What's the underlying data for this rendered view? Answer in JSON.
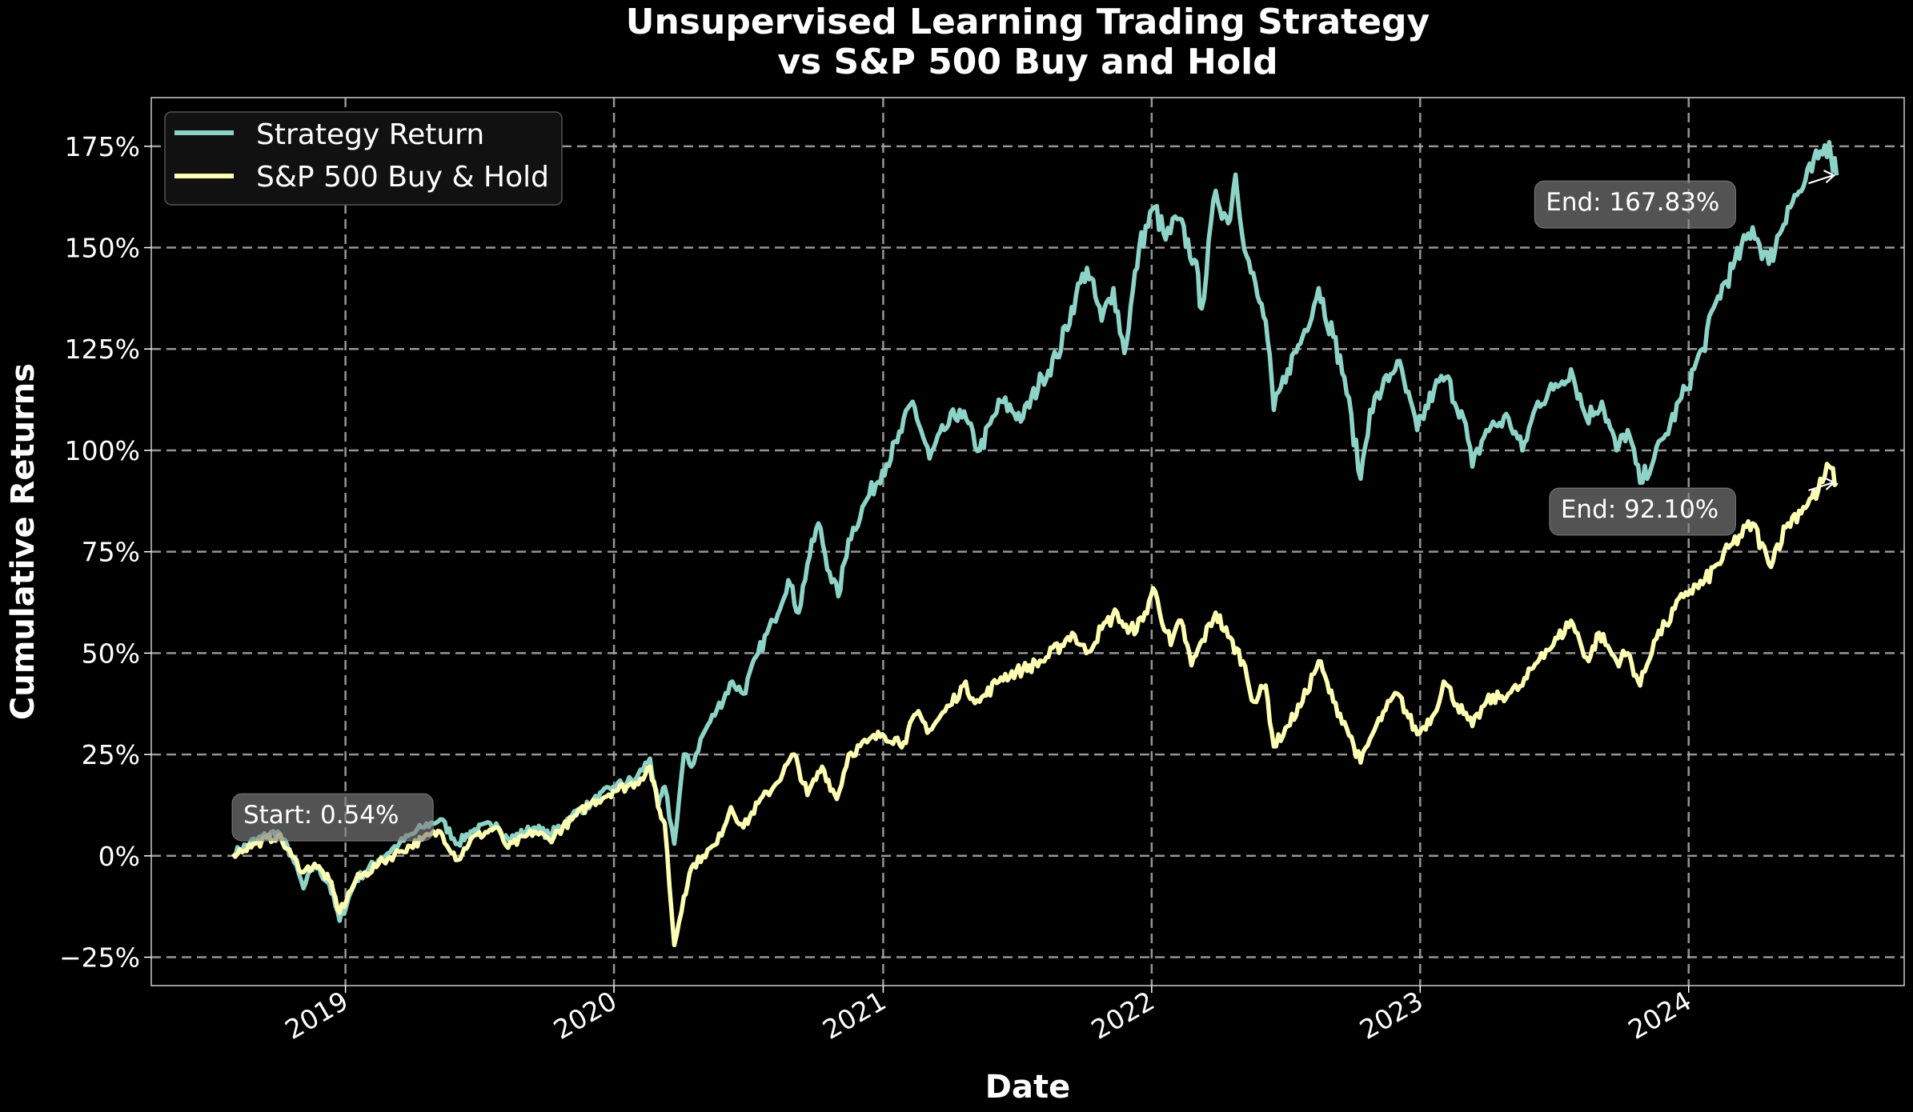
{
  "chart_data": {
    "type": "line",
    "title_line1": "Unsupervised Learning Trading Strategy",
    "title_line2": "vs S&P 500 Buy and Hold",
    "xlabel": "Date",
    "ylabel": "Cumulative Returns",
    "x_range": [
      "2018-04-12",
      "2024-10-20"
    ],
    "ylim": [
      -32,
      187
    ],
    "x_ticks": [
      {
        "date": "2019-01-01",
        "label": "2019"
      },
      {
        "date": "2020-01-01",
        "label": "2020"
      },
      {
        "date": "2021-01-01",
        "label": "2021"
      },
      {
        "date": "2022-01-01",
        "label": "2022"
      },
      {
        "date": "2023-01-01",
        "label": "2023"
      },
      {
        "date": "2024-01-01",
        "label": "2024"
      }
    ],
    "y_ticks": [
      {
        "value": -25,
        "label": "−25%"
      },
      {
        "value": 0,
        "label": "0%"
      },
      {
        "value": 25,
        "label": "25%"
      },
      {
        "value": 50,
        "label": "50%"
      },
      {
        "value": 75,
        "label": "75%"
      },
      {
        "value": 100,
        "label": "100%"
      },
      {
        "value": 125,
        "label": "125%"
      },
      {
        "value": 150,
        "label": "150%"
      },
      {
        "value": 175,
        "label": "175%"
      }
    ],
    "grid": true,
    "legend_position": "top-left",
    "series": [
      {
        "name": "Strategy Return",
        "color": "#8dd3c7",
        "points": [
          [
            "2018-08-01",
            0.5
          ],
          [
            "2018-09-01",
            4
          ],
          [
            "2018-10-01",
            6
          ],
          [
            "2018-10-20",
            0
          ],
          [
            "2018-11-05",
            -8
          ],
          [
            "2018-11-20",
            -2
          ],
          [
            "2018-12-10",
            -7
          ],
          [
            "2018-12-24",
            -16
          ],
          [
            "2019-01-15",
            -6
          ],
          [
            "2019-02-15",
            -1
          ],
          [
            "2019-03-15",
            3
          ],
          [
            "2019-04-15",
            7
          ],
          [
            "2019-05-10",
            9
          ],
          [
            "2019-06-03",
            3
          ],
          [
            "2019-06-20",
            6
          ],
          [
            "2019-07-25",
            8
          ],
          [
            "2019-08-10",
            4
          ],
          [
            "2019-09-15",
            7
          ],
          [
            "2019-10-05",
            5
          ],
          [
            "2019-11-05",
            10
          ],
          [
            "2019-12-01",
            13
          ],
          [
            "2019-12-31",
            17
          ],
          [
            "2020-01-31",
            19
          ],
          [
            "2020-02-19",
            24
          ],
          [
            "2020-03-01",
            12
          ],
          [
            "2020-03-10",
            17
          ],
          [
            "2020-03-23",
            3
          ],
          [
            "2020-04-05",
            25
          ],
          [
            "2020-04-15",
            22
          ],
          [
            "2020-05-01",
            30
          ],
          [
            "2020-05-20",
            36
          ],
          [
            "2020-06-10",
            43
          ],
          [
            "2020-06-25",
            40
          ],
          [
            "2020-07-15",
            50
          ],
          [
            "2020-08-05",
            58
          ],
          [
            "2020-08-25",
            68
          ],
          [
            "2020-09-08",
            60
          ],
          [
            "2020-09-20",
            72
          ],
          [
            "2020-10-05",
            82
          ],
          [
            "2020-10-20",
            70
          ],
          [
            "2020-11-01",
            64
          ],
          [
            "2020-11-15",
            78
          ],
          [
            "2020-12-10",
            88
          ],
          [
            "2020-12-31",
            95
          ],
          [
            "2021-01-20",
            102
          ],
          [
            "2021-02-10",
            112
          ],
          [
            "2021-03-05",
            98
          ],
          [
            "2021-03-25",
            105
          ],
          [
            "2021-04-15",
            110
          ],
          [
            "2021-05-12",
            100
          ],
          [
            "2021-06-10",
            112
          ],
          [
            "2021-07-10",
            108
          ],
          [
            "2021-08-05",
            118
          ],
          [
            "2021-08-25",
            123
          ],
          [
            "2021-09-20",
            138
          ],
          [
            "2021-10-05",
            145
          ],
          [
            "2021-10-25",
            132
          ],
          [
            "2021-11-10",
            140
          ],
          [
            "2021-11-25",
            124
          ],
          [
            "2021-12-15",
            150
          ],
          [
            "2022-01-05",
            160
          ],
          [
            "2022-01-20",
            152
          ],
          [
            "2022-02-05",
            157
          ],
          [
            "2022-02-28",
            147
          ],
          [
            "2022-03-10",
            135
          ],
          [
            "2022-03-29",
            164
          ],
          [
            "2022-04-15",
            156
          ],
          [
            "2022-04-25",
            168
          ],
          [
            "2022-05-10",
            148
          ],
          [
            "2022-05-25",
            138
          ],
          [
            "2022-06-05",
            132
          ],
          [
            "2022-06-16",
            110
          ],
          [
            "2022-07-05",
            120
          ],
          [
            "2022-07-25",
            128
          ],
          [
            "2022-08-16",
            140
          ],
          [
            "2022-09-05",
            128
          ],
          [
            "2022-09-20",
            118
          ],
          [
            "2022-10-12",
            93
          ],
          [
            "2022-10-25",
            110
          ],
          [
            "2022-11-10",
            115
          ],
          [
            "2022-12-01",
            122
          ],
          [
            "2022-12-28",
            105
          ],
          [
            "2023-01-20",
            115
          ],
          [
            "2023-02-05",
            118
          ],
          [
            "2023-03-01",
            108
          ],
          [
            "2023-03-13",
            96
          ],
          [
            "2023-04-01",
            105
          ],
          [
            "2023-05-01",
            108
          ],
          [
            "2023-05-20",
            100
          ],
          [
            "2023-06-10",
            112
          ],
          [
            "2023-07-01",
            115
          ],
          [
            "2023-07-25",
            120
          ],
          [
            "2023-08-15",
            108
          ],
          [
            "2023-09-05",
            112
          ],
          [
            "2023-09-25",
            100
          ],
          [
            "2023-10-10",
            105
          ],
          [
            "2023-10-27",
            92
          ],
          [
            "2023-11-15",
            98
          ],
          [
            "2023-12-01",
            104
          ],
          [
            "2023-12-28",
            115
          ],
          [
            "2024-01-20",
            125
          ],
          [
            "2024-02-10",
            138
          ],
          [
            "2024-03-01",
            145
          ],
          [
            "2024-03-28",
            155
          ],
          [
            "2024-04-19",
            146
          ],
          [
            "2024-05-15",
            160
          ],
          [
            "2024-06-05",
            165
          ],
          [
            "2024-06-25",
            172
          ],
          [
            "2024-07-10",
            176
          ],
          [
            "2024-07-20",
            167.83
          ]
        ]
      },
      {
        "name": "S&P 500 Buy & Hold",
        "color": "#ffffb3",
        "points": [
          [
            "2018-08-01",
            0.5
          ],
          [
            "2018-09-01",
            3
          ],
          [
            "2018-10-01",
            5
          ],
          [
            "2018-10-20",
            0
          ],
          [
            "2018-11-05",
            -4
          ],
          [
            "2018-11-20",
            -2
          ],
          [
            "2018-12-10",
            -6
          ],
          [
            "2018-12-24",
            -14
          ],
          [
            "2019-01-15",
            -6
          ],
          [
            "2019-02-15",
            -2
          ],
          [
            "2019-03-15",
            1
          ],
          [
            "2019-04-15",
            4
          ],
          [
            "2019-05-10",
            6
          ],
          [
            "2019-06-03",
            -1
          ],
          [
            "2019-06-20",
            4
          ],
          [
            "2019-07-25",
            7
          ],
          [
            "2019-08-10",
            2
          ],
          [
            "2019-09-15",
            6
          ],
          [
            "2019-10-05",
            4
          ],
          [
            "2019-11-05",
            9
          ],
          [
            "2019-12-01",
            13
          ],
          [
            "2019-12-31",
            16
          ],
          [
            "2020-01-31",
            18
          ],
          [
            "2020-02-19",
            22
          ],
          [
            "2020-03-01",
            12
          ],
          [
            "2020-03-10",
            8
          ],
          [
            "2020-03-23",
            -22
          ],
          [
            "2020-04-05",
            -10
          ],
          [
            "2020-04-15",
            -3
          ],
          [
            "2020-05-01",
            0
          ],
          [
            "2020-05-20",
            3
          ],
          [
            "2020-06-08",
            12
          ],
          [
            "2020-06-25",
            7
          ],
          [
            "2020-07-15",
            13
          ],
          [
            "2020-08-05",
            17
          ],
          [
            "2020-09-02",
            25
          ],
          [
            "2020-09-20",
            15
          ],
          [
            "2020-10-10",
            22
          ],
          [
            "2020-10-30",
            14
          ],
          [
            "2020-11-15",
            25
          ],
          [
            "2020-12-10",
            28
          ],
          [
            "2020-12-31",
            30
          ],
          [
            "2021-01-29",
            28
          ],
          [
            "2021-02-15",
            35
          ],
          [
            "2021-03-05",
            31
          ],
          [
            "2021-04-01",
            37
          ],
          [
            "2021-04-20",
            42
          ],
          [
            "2021-05-12",
            38
          ],
          [
            "2021-06-10",
            44
          ],
          [
            "2021-07-10",
            46
          ],
          [
            "2021-08-05",
            48
          ],
          [
            "2021-08-31",
            52
          ],
          [
            "2021-09-15",
            55
          ],
          [
            "2021-10-04",
            50
          ],
          [
            "2021-10-25",
            56
          ],
          [
            "2021-11-15",
            60
          ],
          [
            "2021-11-30",
            55
          ],
          [
            "2021-12-20",
            58
          ],
          [
            "2022-01-03",
            66
          ],
          [
            "2022-01-27",
            52
          ],
          [
            "2022-02-10",
            58
          ],
          [
            "2022-02-24",
            47
          ],
          [
            "2022-03-29",
            60
          ],
          [
            "2022-04-15",
            54
          ],
          [
            "2022-05-05",
            48
          ],
          [
            "2022-05-20",
            38
          ],
          [
            "2022-06-05",
            42
          ],
          [
            "2022-06-16",
            27
          ],
          [
            "2022-07-05",
            32
          ],
          [
            "2022-07-25",
            38
          ],
          [
            "2022-08-16",
            48
          ],
          [
            "2022-09-05",
            38
          ],
          [
            "2022-09-20",
            33
          ],
          [
            "2022-10-12",
            23
          ],
          [
            "2022-10-28",
            30
          ],
          [
            "2022-11-15",
            36
          ],
          [
            "2022-12-01",
            40
          ],
          [
            "2022-12-28",
            30
          ],
          [
            "2023-01-20",
            35
          ],
          [
            "2023-02-02",
            43
          ],
          [
            "2023-03-01",
            35
          ],
          [
            "2023-03-13",
            32
          ],
          [
            "2023-04-01",
            38
          ],
          [
            "2023-05-01",
            40
          ],
          [
            "2023-05-20",
            42
          ],
          [
            "2023-06-15",
            50
          ],
          [
            "2023-07-01",
            52
          ],
          [
            "2023-07-25",
            58
          ],
          [
            "2023-08-18",
            48
          ],
          [
            "2023-09-01",
            55
          ],
          [
            "2023-09-25",
            48
          ],
          [
            "2023-10-10",
            50
          ],
          [
            "2023-10-27",
            42
          ],
          [
            "2023-11-15",
            53
          ],
          [
            "2023-12-01",
            57
          ],
          [
            "2023-12-28",
            65
          ],
          [
            "2024-01-20",
            67
          ],
          [
            "2024-02-10",
            72
          ],
          [
            "2024-03-01",
            77
          ],
          [
            "2024-03-28",
            82
          ],
          [
            "2024-04-19",
            72
          ],
          [
            "2024-05-15",
            82
          ],
          [
            "2024-06-05",
            86
          ],
          [
            "2024-06-25",
            90
          ],
          [
            "2024-07-10",
            96
          ],
          [
            "2024-07-20",
            92.1
          ]
        ]
      }
    ],
    "annotations": [
      {
        "label": "Start: 0.54%",
        "date": "2018-07-20",
        "value": 0.54,
        "color": "#8dd3c7",
        "arrow": false
      },
      {
        "label": "End: 167.83%",
        "date": "2024-07-20",
        "value": 167.83,
        "color": "#8dd3c7",
        "arrow": true
      },
      {
        "label": "End: 92.10%",
        "date": "2024-07-20",
        "value": 92.1,
        "color": "#ffffb3",
        "arrow": true
      }
    ]
  }
}
